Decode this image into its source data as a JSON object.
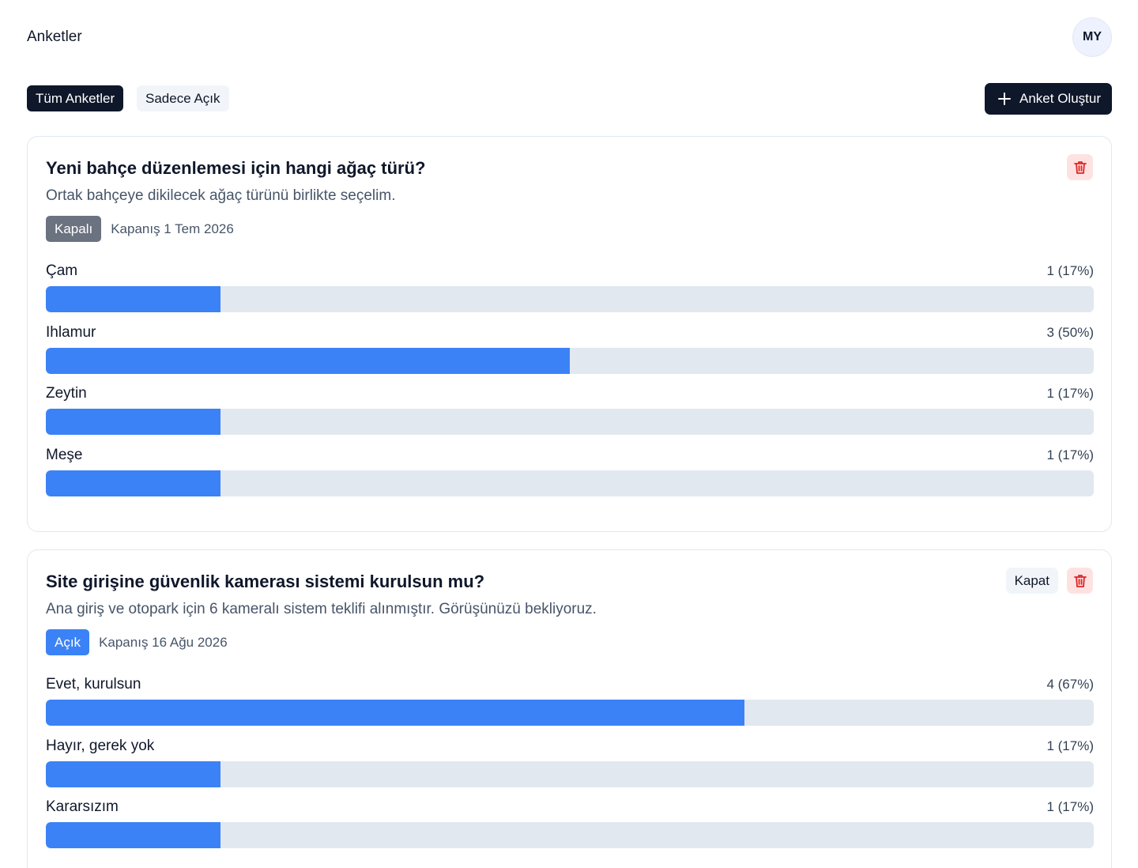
{
  "header": {
    "title": "Anketler",
    "avatar_initials": "MY"
  },
  "toolbar": {
    "filters": [
      {
        "label": "Tüm Anketler",
        "active": true
      },
      {
        "label": "Sadece Açık",
        "active": false
      }
    ],
    "create_label": "Anket Oluştur"
  },
  "colors": {
    "accent": "#3b82f6",
    "dark": "#0f172a",
    "danger": "#dc2626",
    "track": "#e2e8f0"
  },
  "polls": [
    {
      "title": "Yeni bahçe düzenlemesi için hangi ağaç türü?",
      "description": "Ortak bahçeye dikilecek ağaç türünü birlikte seçelim.",
      "status": "Kapalı",
      "closing": "Kapanış 1 Tem 2026",
      "options": [
        {
          "label": "Çam",
          "count_text": "1 (17%)",
          "share": 0.1667
        },
        {
          "label": "Ihlamur",
          "count_text": "3 (50%)",
          "share": 0.5
        },
        {
          "label": "Zeytin",
          "count_text": "1 (17%)",
          "share": 0.1667
        },
        {
          "label": "Meşe",
          "count_text": "1 (17%)",
          "share": 0.1667
        }
      ]
    },
    {
      "title": "Site girişine güvenlik kamerası sistemi kurulsun mu?",
      "description": "Ana giriş ve otopark için 6 kameralı sistem teklifi alınmıştır. Görüşünüzü bekliyoruz.",
      "status": "Açık",
      "closing": "Kapanış 16 Ağu 2026",
      "close_label": "Kapat",
      "options": [
        {
          "label": "Evet, kurulsun",
          "count_text": "4 (67%)",
          "share": 0.6667
        },
        {
          "label": "Hayır, gerek yok",
          "count_text": "1 (17%)",
          "share": 0.1667
        },
        {
          "label": "Kararsızım",
          "count_text": "1 (17%)",
          "share": 0.1667
        }
      ]
    }
  ]
}
